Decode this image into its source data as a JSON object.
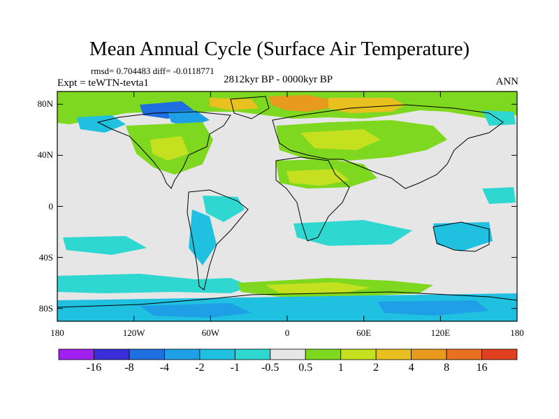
{
  "figure": {
    "title": "Mean Annual Cycle (Surface Air Temperature)",
    "stats": "rmsd= 0.704483 diff= -0.0118771",
    "experiment": "Expt = teWTN-tevta1",
    "period": "2812kyr BP - 0000kyr BP",
    "season": "ANN"
  },
  "axes": {
    "lat_labels": [
      "80N",
      "40N",
      "0",
      "40S",
      "80S"
    ],
    "lat_values": [
      80,
      40,
      0,
      -40,
      -80
    ],
    "lon_labels": [
      "180",
      "120W",
      "60W",
      "0",
      "60E",
      "120E",
      "180"
    ],
    "lon_values": [
      -180,
      -120,
      -60,
      0,
      60,
      120,
      180
    ],
    "lat_range": [
      -90,
      90
    ],
    "lon_range": [
      -180,
      180
    ]
  },
  "colorbar": {
    "labels": [
      "-16",
      "-8",
      "-4",
      "-2",
      "-1",
      "-0.5",
      "0.5",
      "1",
      "2",
      "4",
      "8",
      "16"
    ],
    "colors": [
      "#a020f0",
      "#3a2ed8",
      "#1f6fe0",
      "#1fa0e6",
      "#1fc0e0",
      "#2ed8d0",
      "#e6e6e6",
      "#7ed81f",
      "#c4e01f",
      "#e8c01f",
      "#e89a1f",
      "#e8701f",
      "#e0401f"
    ]
  },
  "field_colors": {
    "background": "#e6e6e6",
    "cool_weak": "#2ed8d0",
    "cool_mid": "#1fc0e0",
    "cool_strong": "#1fa0e6",
    "cold": "#1f6fe0",
    "warm_weak": "#7ed81f",
    "warm_mid": "#c4e01f",
    "warm_strong": "#e8c01f",
    "hot": "#e89a1f",
    "hotter": "#e8701f"
  }
}
